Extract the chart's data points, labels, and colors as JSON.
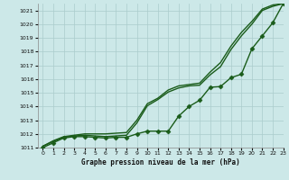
{
  "xlabel": "Graphe pression niveau de la mer (hPa)",
  "bg_color": "#cce8e8",
  "grid_color": "#aacccc",
  "line_color": "#1a5c1a",
  "ylim": [
    1011,
    1021.5
  ],
  "xlim": [
    -0.5,
    23
  ],
  "yticks": [
    1011,
    1012,
    1013,
    1014,
    1015,
    1016,
    1017,
    1018,
    1019,
    1020,
    1021
  ],
  "xticks": [
    0,
    1,
    2,
    3,
    4,
    5,
    6,
    7,
    8,
    9,
    10,
    11,
    12,
    13,
    14,
    15,
    16,
    17,
    18,
    19,
    20,
    21,
    22,
    23
  ],
  "series_top": {
    "x": [
      0,
      1,
      2,
      3,
      4,
      5,
      6,
      7,
      8,
      9,
      10,
      11,
      12,
      13,
      14,
      15,
      16,
      17,
      18,
      19,
      20,
      21,
      22,
      23
    ],
    "y": [
      1011.1,
      1011.5,
      1011.8,
      1011.9,
      1012.0,
      1012.0,
      1012.0,
      1012.05,
      1012.1,
      1013.0,
      1014.2,
      1014.6,
      1015.2,
      1015.5,
      1015.6,
      1015.7,
      1016.5,
      1017.2,
      1018.4,
      1019.4,
      1020.2,
      1021.1,
      1021.4,
      1021.5
    ],
    "linewidth": 1.0
  },
  "series_mid": {
    "x": [
      0,
      1,
      2,
      3,
      4,
      5,
      6,
      7,
      8,
      9,
      10,
      11,
      12,
      13,
      14,
      15,
      16,
      17,
      18,
      19,
      20,
      21,
      22,
      23
    ],
    "y": [
      1011.1,
      1011.45,
      1011.75,
      1011.85,
      1011.9,
      1011.85,
      1011.8,
      1011.85,
      1011.9,
      1012.8,
      1014.05,
      1014.5,
      1015.05,
      1015.35,
      1015.5,
      1015.55,
      1016.3,
      1016.9,
      1018.15,
      1019.15,
      1020.0,
      1021.0,
      1021.3,
      1021.5
    ],
    "linewidth": 1.0
  },
  "series_marked": {
    "x": [
      0,
      1,
      2,
      3,
      4,
      5,
      6,
      7,
      8,
      9,
      10,
      11,
      12,
      13,
      14,
      15,
      16,
      17,
      18,
      19,
      20,
      21,
      22,
      23
    ],
    "y": [
      1011.0,
      1011.35,
      1011.7,
      1011.8,
      1011.8,
      1011.75,
      1011.7,
      1011.75,
      1011.75,
      1012.0,
      1012.2,
      1012.2,
      1012.2,
      1013.3,
      1014.0,
      1014.45,
      1015.4,
      1015.45,
      1016.1,
      1016.35,
      1018.2,
      1019.15,
      1020.1,
      1021.5
    ],
    "marker": "D",
    "markersize": 2.5,
    "linewidth": 1.0
  }
}
